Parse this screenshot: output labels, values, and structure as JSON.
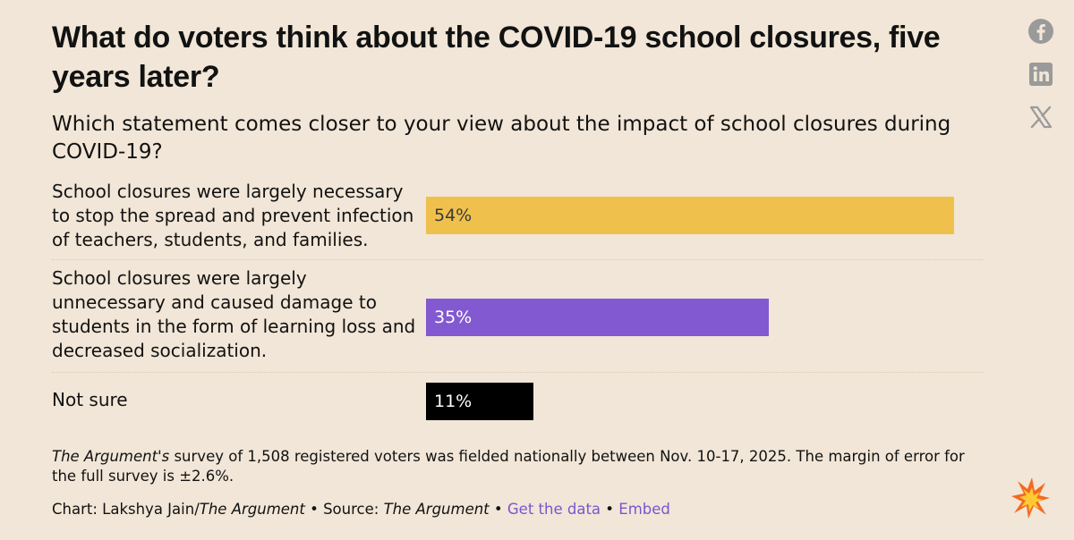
{
  "header": {
    "title": "What do voters think about the COVID-19 school closures, five years later?",
    "subtitle": "Which statement comes closer to your view about the impact of school closures during COVID-19?"
  },
  "social": {
    "icons": [
      "facebook-icon",
      "linkedin-icon",
      "x-icon"
    ]
  },
  "chart_data": {
    "type": "bar",
    "orientation": "horizontal",
    "title": "What do voters think about the COVID-19 school closures, five years later?",
    "subtitle": "Which statement comes closer to your view about the impact of school closures during COVID-19?",
    "categories": [
      "School closures were largely necessary to stop the spread and prevent infection of teachers, students, and families.",
      "School closures were largely unnecessary and caused damage to students in the form of learning loss and decreased socialization.",
      "Not sure"
    ],
    "values": [
      54,
      35,
      11
    ],
    "value_labels": [
      "54%",
      "35%",
      "11%"
    ],
    "colors": [
      "#efc14c",
      "#8259d1",
      "#000000"
    ],
    "label_colors": [
      "#3a3a3a",
      "#ffffff",
      "#ffffff"
    ],
    "xlim": [
      0,
      100
    ],
    "grid": false,
    "legend": "none"
  },
  "footer": {
    "note_italic": "The Argument's",
    "note_text": " survey of 1,508 registered voters was fielded nationally between Nov. 10-17, 2025. The margin of error for the full survey is ±2.6%.",
    "credit_prefix": "Chart: Lakshya Jain/",
    "credit_pub": "The Argument",
    "credit_sep1": " • Source: ",
    "credit_source": "The Argument",
    "credit_sep2": " • ",
    "get_data": "Get the data",
    "credit_sep3": " • ",
    "embed": "Embed"
  }
}
